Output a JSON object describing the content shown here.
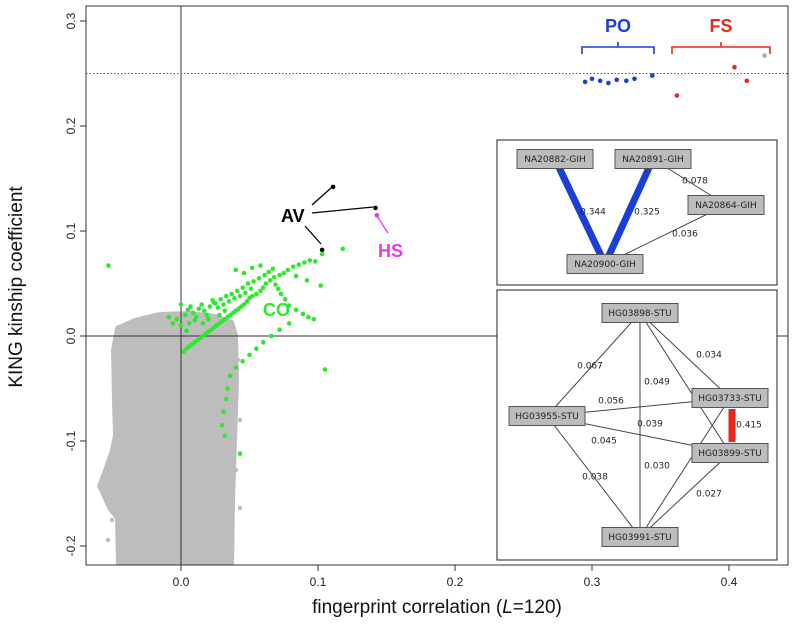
{
  "chart_data": {
    "type": "scatter",
    "title": "",
    "xlabel": {
      "prefix": "fingerprint correlation (",
      "italic": "L",
      "suffix": "=120)"
    },
    "ylabel": "KING kinship coefficient",
    "xlim": [
      -0.07,
      0.44
    ],
    "ylim": [
      -0.22,
      0.32
    ],
    "xticks": [
      0.0,
      0.1,
      0.2,
      0.3,
      0.4
    ],
    "xtick_labels": [
      "0.0",
      "0.1",
      "0.2",
      "0.3",
      "0.4"
    ],
    "yticks": [
      -0.2,
      -0.1,
      0.0,
      0.1,
      0.2,
      0.3
    ],
    "ytick_labels": [
      "-0.2",
      "-0.1",
      "0.0",
      "0.1",
      "0.2",
      "0.3"
    ],
    "reference_lines": {
      "x_zero": 0.0,
      "y_zero": 0.0,
      "dotted_y": 0.25
    },
    "colors": {
      "background": "#bdbdbd",
      "CO": "#2ee82e",
      "AV": "#000000",
      "HS": "#e83be8",
      "PO": "#1a3fd6",
      "FS": "#e8281e",
      "grey_point": "#aaaaaa"
    },
    "groups": [
      {
        "name": "PO",
        "color": "#1a3fd6",
        "points": [
          [
            0.295,
            0.242
          ],
          [
            0.3,
            0.245
          ],
          [
            0.306,
            0.243
          ],
          [
            0.312,
            0.241
          ],
          [
            0.318,
            0.244
          ],
          [
            0.325,
            0.243
          ],
          [
            0.331,
            0.245
          ],
          [
            0.344,
            0.248
          ]
        ]
      },
      {
        "name": "FS",
        "color": "#e8281e",
        "points": [
          [
            0.362,
            0.229
          ],
          [
            0.404,
            0.256
          ],
          [
            0.413,
            0.243
          ]
        ]
      },
      {
        "name": "grey",
        "color": "#aaaaaa",
        "points": [
          [
            0.426,
            0.267
          ]
        ]
      },
      {
        "name": "AV",
        "color": "#000000",
        "points": [
          [
            0.111,
            0.142
          ],
          [
            0.142,
            0.122
          ],
          [
            0.103,
            0.082
          ]
        ]
      },
      {
        "name": "HS",
        "color": "#e83be8",
        "points": [
          [
            0.143,
            0.115
          ]
        ]
      },
      {
        "name": "CO",
        "color": "#2ee82e",
        "points": [
          [
            -0.053,
            0.067
          ],
          [
            0.118,
            0.083
          ],
          [
            0.103,
            0.078
          ],
          [
            0.098,
            0.071
          ],
          [
            0.094,
            0.072
          ],
          [
            0.09,
            0.07
          ],
          [
            0.086,
            0.068
          ],
          [
            0.082,
            0.066
          ],
          [
            0.078,
            0.063
          ],
          [
            0.075,
            0.06
          ],
          [
            0.072,
            0.058
          ],
          [
            0.068,
            0.056
          ],
          [
            0.065,
            0.053
          ],
          [
            0.062,
            0.05
          ],
          [
            0.06,
            0.046
          ],
          [
            0.058,
            0.043
          ],
          [
            0.055,
            0.04
          ],
          [
            0.052,
            0.038
          ],
          [
            0.05,
            0.036
          ],
          [
            0.048,
            0.033
          ],
          [
            0.046,
            0.03
          ],
          [
            0.044,
            0.028
          ],
          [
            0.042,
            0.026
          ],
          [
            0.04,
            0.024
          ],
          [
            0.038,
            0.022
          ],
          [
            0.036,
            0.02
          ],
          [
            0.034,
            0.018
          ],
          [
            0.032,
            0.016
          ],
          [
            0.03,
            0.014
          ],
          [
            0.028,
            0.012
          ],
          [
            0.026,
            0.01
          ],
          [
            0.024,
            0.008
          ],
          [
            0.022,
            0.006
          ],
          [
            0.02,
            0.004
          ],
          [
            0.018,
            0.002
          ],
          [
            0.016,
            0.0
          ],
          [
            0.014,
            -0.002
          ],
          [
            0.012,
            -0.004
          ],
          [
            0.01,
            -0.006
          ],
          [
            0.008,
            -0.008
          ],
          [
            0.006,
            -0.01
          ],
          [
            0.004,
            -0.012
          ],
          [
            0.002,
            -0.015
          ],
          [
            0.0,
            0.01
          ],
          [
            0.003,
            0.02
          ],
          [
            0.005,
            0.025
          ],
          [
            0.007,
            0.028
          ],
          [
            0.009,
            0.022
          ],
          [
            0.011,
            0.018
          ],
          [
            0.013,
            0.026
          ],
          [
            0.015,
            0.03
          ],
          [
            0.017,
            0.024
          ],
          [
            0.019,
            0.02
          ],
          [
            0.021,
            0.028
          ],
          [
            0.023,
            0.034
          ],
          [
            0.025,
            0.031
          ],
          [
            0.027,
            0.027
          ],
          [
            0.029,
            0.035
          ],
          [
            0.031,
            0.03
          ],
          [
            0.033,
            0.038
          ],
          [
            0.035,
            0.033
          ],
          [
            0.037,
            0.04
          ],
          [
            0.039,
            0.036
          ],
          [
            0.041,
            0.043
          ],
          [
            0.043,
            0.038
          ],
          [
            0.045,
            0.046
          ],
          [
            0.047,
            0.041
          ],
          [
            0.049,
            0.05
          ],
          [
            0.051,
            0.045
          ],
          [
            0.053,
            0.052
          ],
          [
            0.057,
            0.055
          ],
          [
            0.061,
            0.058
          ],
          [
            0.064,
            0.061
          ],
          [
            0.067,
            0.064
          ],
          [
            0.069,
            0.049
          ],
          [
            0.071,
            0.045
          ],
          [
            0.073,
            0.04
          ],
          [
            0.076,
            0.035
          ],
          [
            0.079,
            0.029
          ],
          [
            0.084,
            0.025
          ],
          [
            0.089,
            0.021
          ],
          [
            0.093,
            0.018
          ],
          [
            0.097,
            0.016
          ],
          [
            0.079,
            0.012
          ],
          [
            0.072,
            0.006
          ],
          [
            0.066,
            0.0
          ],
          [
            0.06,
            -0.006
          ],
          [
            0.055,
            -0.012
          ],
          [
            0.05,
            -0.018
          ],
          [
            0.045,
            -0.024
          ],
          [
            0.04,
            -0.03
          ],
          [
            0.036,
            -0.038
          ],
          [
            0.034,
            -0.05
          ],
          [
            0.033,
            -0.06
          ],
          [
            0.031,
            -0.072
          ],
          [
            0.03,
            -0.085
          ],
          [
            0.032,
            -0.095
          ],
          [
            0.043,
            -0.112
          ],
          [
            0.105,
            -0.032
          ],
          [
            0.102,
            0.048
          ],
          [
            0.092,
            0.053
          ],
          [
            0.084,
            0.057
          ],
          [
            0.04,
            0.063
          ],
          [
            0.046,
            0.06
          ],
          [
            0.052,
            0.065
          ],
          [
            0.058,
            0.067
          ],
          [
            0.024,
            0.032
          ],
          [
            0.01,
            0.015
          ],
          [
            0.006,
            0.012
          ],
          [
            -0.003,
            0.016
          ],
          [
            -0.006,
            0.012
          ],
          [
            -0.009,
            0.018
          ],
          [
            0.0,
            0.03
          ],
          [
            0.004,
            0.005
          ],
          [
            0.016,
            0.012
          ],
          [
            0.02,
            0.016
          ],
          [
            0.028,
            0.02
          ],
          [
            0.032,
            0.024
          ]
        ]
      }
    ],
    "annotations": [
      {
        "text": "PO",
        "color": "#1a3fd6"
      },
      {
        "text": "FS",
        "color": "#e8281e"
      },
      {
        "text": "AV",
        "color": "#000000"
      },
      {
        "text": "HS",
        "color": "#e83be8"
      },
      {
        "text": "CO",
        "color": "#2ee82e"
      }
    ],
    "inset_networks": [
      {
        "nodes": [
          "NA20882-GIH",
          "NA20891-GIH",
          "NA20864-GIH",
          "NA20900-GIH"
        ],
        "edges": [
          {
            "from": "NA20882-GIH",
            "to": "NA20900-GIH",
            "value": 0.344,
            "label": "0.344",
            "color": "#1a3fd6",
            "strong": true
          },
          {
            "from": "NA20891-GIH",
            "to": "NA20900-GIH",
            "value": 0.325,
            "label": "0.325",
            "color": "#1a3fd6",
            "strong": true
          },
          {
            "from": "NA20891-GIH",
            "to": "NA20864-GIH",
            "value": 0.078,
            "label": "0.078",
            "color": "#444444",
            "strong": false
          },
          {
            "from": "NA20864-GIH",
            "to": "NA20900-GIH",
            "value": 0.036,
            "label": "0.036",
            "color": "#444444",
            "strong": false
          }
        ]
      },
      {
        "nodes": [
          "HG03898-STU",
          "HG03955-STU",
          "HG03733-STU",
          "HG03899-STU",
          "HG03991-STU"
        ],
        "edges": [
          {
            "from": "HG03898-STU",
            "to": "HG03955-STU",
            "value": 0.067,
            "label": "0.067",
            "color": "#444444",
            "strong": false
          },
          {
            "from": "HG03898-STU",
            "to": "HG03733-STU",
            "value": 0.034,
            "label": "0.034",
            "color": "#444444",
            "strong": false
          },
          {
            "from": "HG03898-STU",
            "to": "HG03899-STU",
            "value": 0.049,
            "label": "0.049",
            "color": "#444444",
            "strong": false
          },
          {
            "from": "HG03898-STU",
            "to": "HG03991-STU",
            "value": 0.039,
            "label": "0.039",
            "color": "#444444",
            "strong": false
          },
          {
            "from": "HG03955-STU",
            "to": "HG03733-STU",
            "value": 0.056,
            "label": "0.056",
            "color": "#444444",
            "strong": false
          },
          {
            "from": "HG03955-STU",
            "to": "HG03899-STU",
            "value": 0.045,
            "label": "0.045",
            "color": "#444444",
            "strong": false
          },
          {
            "from": "HG03955-STU",
            "to": "HG03991-STU",
            "value": 0.038,
            "label": "0.038",
            "color": "#444444",
            "strong": false
          },
          {
            "from": "HG03733-STU",
            "to": "HG03991-STU",
            "value": 0.03,
            "label": "0.030",
            "color": "#444444",
            "strong": false
          },
          {
            "from": "HG03899-STU",
            "to": "HG03991-STU",
            "value": 0.027,
            "label": "0.027",
            "color": "#444444",
            "strong": false
          },
          {
            "from": "HG03733-STU",
            "to": "HG03899-STU",
            "value": 0.415,
            "label": "0.415",
            "color": "#e8281e",
            "strong": true
          }
        ]
      }
    ]
  }
}
